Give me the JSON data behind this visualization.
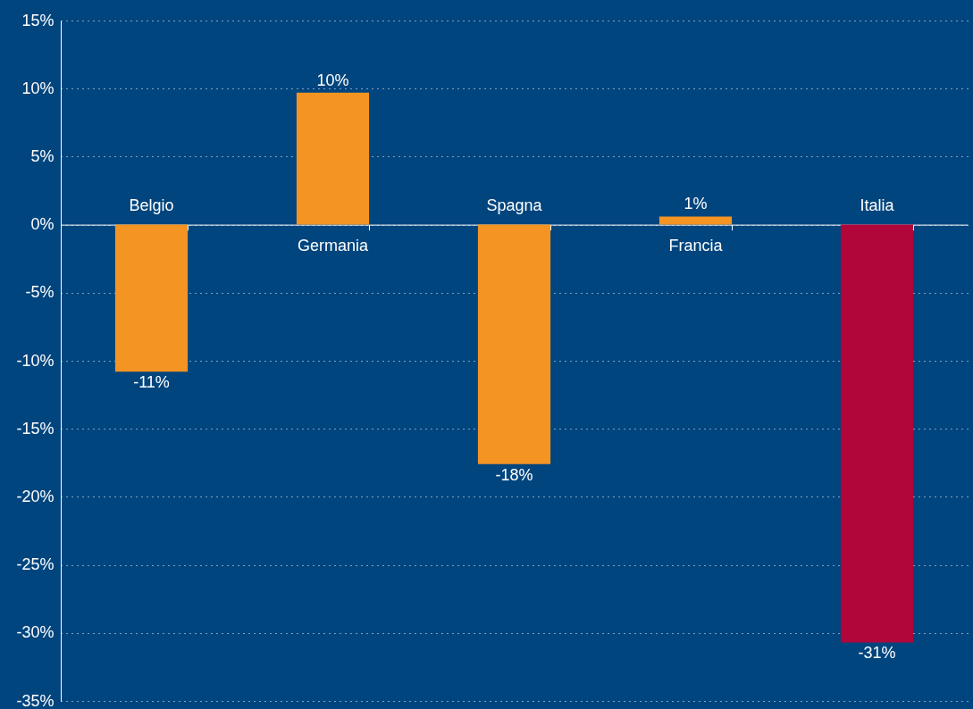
{
  "chart_data": {
    "type": "bar",
    "categories": [
      "Belgio",
      "Germania",
      "Spagna",
      "Francia",
      "Italia"
    ],
    "values": [
      -10.8,
      9.7,
      -17.6,
      0.6,
      -30.7
    ],
    "colors": [
      "#f39423",
      "#f39423",
      "#f39423",
      "#f39423",
      "#b0063a"
    ],
    "value_labels": [
      "-11%",
      "10%",
      "-18%",
      "1%",
      "-31%"
    ],
    "ylim": [
      -35,
      15
    ],
    "yticks": [
      {
        "value": 15,
        "label": "15%"
      },
      {
        "value": 10,
        "label": "10%"
      },
      {
        "value": 5,
        "label": "5%"
      },
      {
        "value": 0,
        "label": "0%"
      },
      {
        "value": -5,
        "label": "-5%"
      },
      {
        "value": -10,
        "label": "-10%"
      },
      {
        "value": -15,
        "label": "-15%"
      },
      {
        "value": -20,
        "label": "-20%"
      },
      {
        "value": -25,
        "label": "-25%"
      },
      {
        "value": -30,
        "label": "-30%"
      },
      {
        "value": -35,
        "label": "-35%"
      }
    ],
    "grid": "y"
  }
}
